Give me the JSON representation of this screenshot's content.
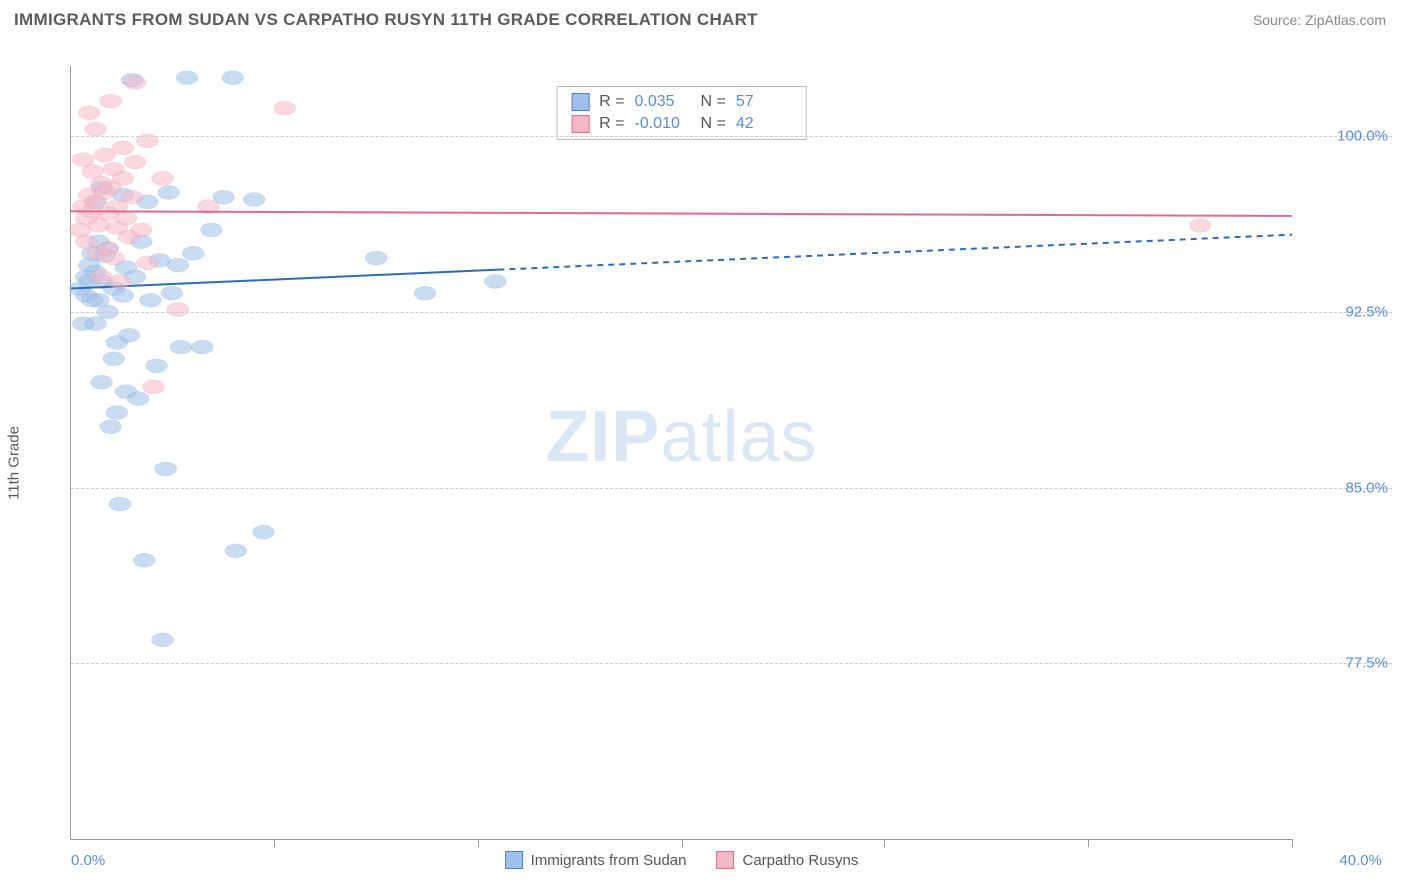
{
  "header": {
    "title": "IMMIGRANTS FROM SUDAN VS CARPATHO RUSYN 11TH GRADE CORRELATION CHART",
    "source": "Source: ZipAtlas.com"
  },
  "axes": {
    "y_label": "11th Grade",
    "y_ticks": [
      {
        "value": 100.0,
        "label": "100.0%"
      },
      {
        "value": 92.5,
        "label": "92.5%"
      },
      {
        "value": 85.0,
        "label": "85.0%"
      },
      {
        "value": 77.5,
        "label": "77.5%"
      }
    ],
    "x_min": 0.0,
    "x_max": 40.0,
    "x_label_min": "0.0%",
    "x_label_max": "40.0%",
    "y_min": 70.0,
    "y_max": 103.0,
    "x_tick_positions_pct": [
      16.6,
      33.3,
      50.0,
      66.6,
      83.3,
      100.0
    ]
  },
  "watermark": {
    "bold": "ZIP",
    "rest": "atlas"
  },
  "series": {
    "sudan": {
      "name": "Immigrants from Sudan",
      "fill_color": "#9fc0e8",
      "stroke_color": "#4e83c9",
      "line_color": "#2f6bb3",
      "marker_radius": 8,
      "marker_opacity": 0.55,
      "R": "0.035",
      "N": "57",
      "trend": {
        "y_start": 93.5,
        "y_end": 95.8,
        "solid_until_x": 14.0
      },
      "points": [
        [
          0.3,
          93.5
        ],
        [
          0.4,
          92.0
        ],
        [
          0.5,
          94.0
        ],
        [
          0.5,
          93.2
        ],
        [
          0.6,
          93.8
        ],
        [
          0.6,
          94.5
        ],
        [
          0.7,
          93.0
        ],
        [
          0.7,
          95.0
        ],
        [
          0.8,
          97.2
        ],
        [
          0.8,
          92.0
        ],
        [
          0.8,
          94.2
        ],
        [
          0.9,
          93.0
        ],
        [
          0.9,
          95.5
        ],
        [
          1.0,
          93.8
        ],
        [
          1.0,
          89.5
        ],
        [
          1.0,
          97.8
        ],
        [
          1.1,
          94.9
        ],
        [
          1.2,
          92.5
        ],
        [
          1.2,
          95.2
        ],
        [
          1.3,
          87.6
        ],
        [
          1.4,
          90.5
        ],
        [
          1.4,
          93.5
        ],
        [
          1.5,
          88.2
        ],
        [
          1.5,
          91.2
        ],
        [
          1.6,
          84.3
        ],
        [
          1.7,
          97.5
        ],
        [
          1.7,
          93.2
        ],
        [
          1.8,
          94.4
        ],
        [
          1.8,
          89.1
        ],
        [
          1.9,
          91.5
        ],
        [
          2.0,
          102.4
        ],
        [
          2.1,
          94.0
        ],
        [
          2.2,
          88.8
        ],
        [
          2.3,
          95.5
        ],
        [
          2.4,
          81.9
        ],
        [
          2.5,
          97.2
        ],
        [
          2.6,
          93.0
        ],
        [
          2.8,
          90.2
        ],
        [
          2.9,
          94.7
        ],
        [
          3.0,
          78.5
        ],
        [
          3.1,
          85.8
        ],
        [
          3.2,
          97.6
        ],
        [
          3.3,
          93.3
        ],
        [
          3.5,
          94.5
        ],
        [
          3.6,
          91.0
        ],
        [
          3.8,
          102.5
        ],
        [
          4.0,
          95.0
        ],
        [
          4.3,
          91.0
        ],
        [
          4.6,
          96.0
        ],
        [
          5.0,
          97.4
        ],
        [
          5.3,
          102.5
        ],
        [
          5.4,
          82.3
        ],
        [
          6.0,
          97.3
        ],
        [
          6.3,
          83.1
        ],
        [
          10.0,
          94.8
        ],
        [
          11.6,
          93.3
        ],
        [
          13.9,
          93.8
        ]
      ]
    },
    "carpatho": {
      "name": "Carpatho Rusyns",
      "fill_color": "#f4b8c7",
      "stroke_color": "#e06c8d",
      "line_color": "#e06c8d",
      "marker_radius": 8,
      "marker_opacity": 0.55,
      "R": "-0.010",
      "N": "42",
      "trend": {
        "y_start": 96.8,
        "y_end": 96.6,
        "solid_until_x": 40.0
      },
      "points": [
        [
          0.3,
          96.0
        ],
        [
          0.4,
          97.0
        ],
        [
          0.4,
          99.0
        ],
        [
          0.5,
          96.5
        ],
        [
          0.5,
          95.5
        ],
        [
          0.6,
          97.5
        ],
        [
          0.6,
          101.0
        ],
        [
          0.7,
          96.8
        ],
        [
          0.7,
          98.5
        ],
        [
          0.8,
          97.2
        ],
        [
          0.8,
          100.3
        ],
        [
          0.9,
          95.0
        ],
        [
          0.9,
          96.2
        ],
        [
          1.0,
          98.0
        ],
        [
          1.0,
          94.0
        ],
        [
          1.1,
          97.6
        ],
        [
          1.1,
          99.2
        ],
        [
          1.2,
          95.2
        ],
        [
          1.2,
          96.7
        ],
        [
          1.3,
          97.8
        ],
        [
          1.3,
          101.5
        ],
        [
          1.4,
          94.8
        ],
        [
          1.4,
          98.6
        ],
        [
          1.5,
          96.1
        ],
        [
          1.5,
          97.0
        ],
        [
          1.6,
          93.8
        ],
        [
          1.7,
          98.2
        ],
        [
          1.7,
          99.5
        ],
        [
          1.8,
          96.5
        ],
        [
          1.9,
          95.7
        ],
        [
          2.0,
          97.4
        ],
        [
          2.1,
          98.9
        ],
        [
          2.1,
          102.3
        ],
        [
          2.3,
          96.0
        ],
        [
          2.5,
          94.6
        ],
        [
          2.5,
          99.8
        ],
        [
          2.7,
          89.3
        ],
        [
          3.0,
          98.2
        ],
        [
          3.5,
          92.6
        ],
        [
          4.5,
          97.0
        ],
        [
          7.0,
          101.2
        ],
        [
          37.0,
          96.2
        ]
      ]
    }
  },
  "stats_box": {
    "rows": [
      {
        "series": "sudan"
      },
      {
        "series": "carpatho"
      }
    ],
    "labels": {
      "R": "R",
      "eq": "=",
      "N": "N"
    }
  },
  "legend_order": [
    "sudan",
    "carpatho"
  ]
}
